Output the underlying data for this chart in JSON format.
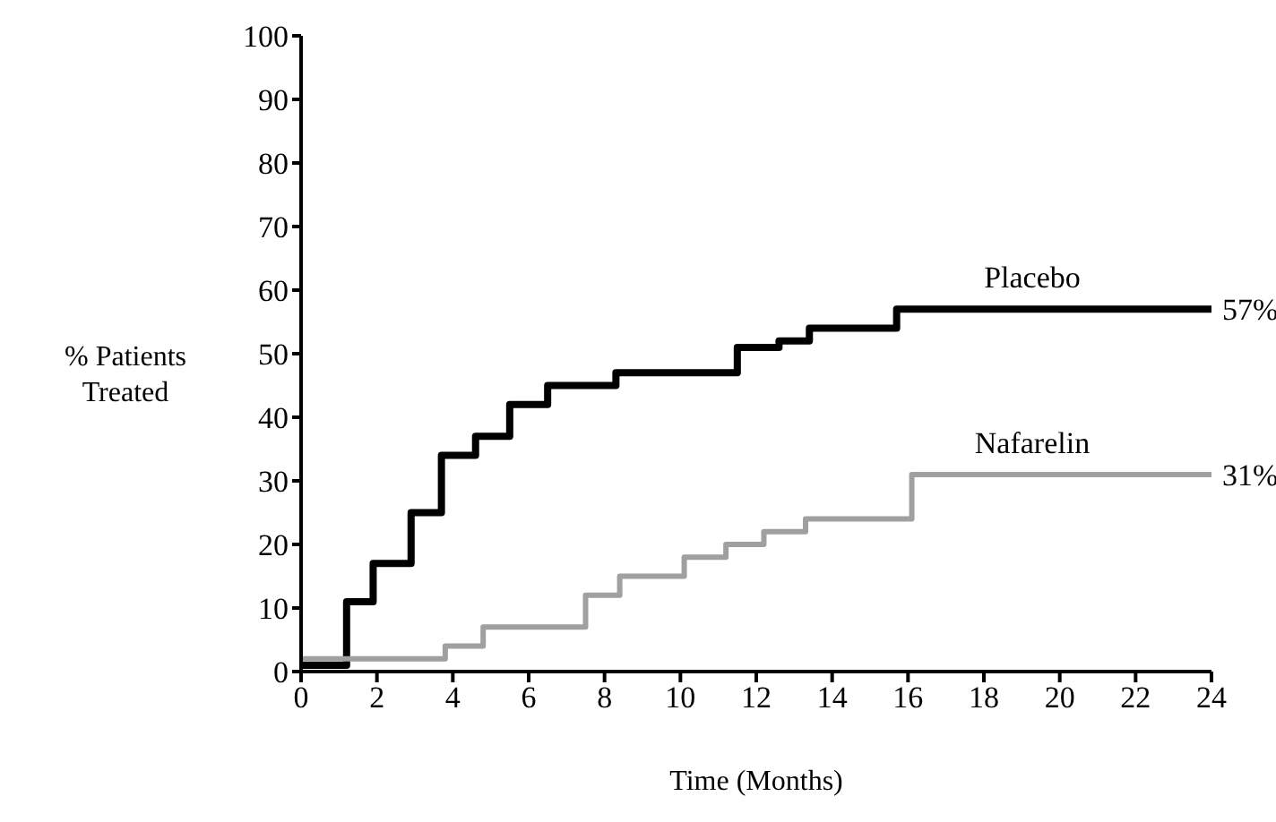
{
  "chart_data": {
    "type": "step",
    "xlabel": "Time (Months)",
    "ylabel": "% Patients Treated",
    "xlim": [
      0,
      24
    ],
    "xticks": [
      0,
      2,
      4,
      6,
      8,
      10,
      12,
      14,
      16,
      18,
      20,
      22,
      24
    ],
    "ylim": [
      0,
      100
    ],
    "yticks": [
      0,
      10,
      20,
      30,
      40,
      50,
      60,
      70,
      80,
      90,
      100
    ],
    "grid": false,
    "legend": false,
    "marker": "none",
    "line_style": "solid",
    "series": [
      {
        "name": "Placebo",
        "color": "#000000",
        "x": [
          0,
          1.2,
          1.9,
          2.9,
          3.7,
          4.6,
          5.5,
          6.5,
          8.3,
          11.5,
          12.6,
          13.4,
          15.7,
          24
        ],
        "values": [
          1,
          11,
          17,
          25,
          34,
          37,
          42,
          45,
          47,
          51,
          52,
          54,
          57,
          57
        ]
      },
      {
        "name": "Nafarelin",
        "color": "#a0a0a0",
        "x": [
          0,
          3.8,
          4.8,
          7.5,
          8.4,
          10.1,
          11.2,
          12.2,
          13.3,
          16.1,
          24
        ],
        "values": [
          2,
          4,
          7,
          12,
          15,
          18,
          20,
          22,
          24,
          31,
          31
        ]
      }
    ],
    "annotations": [
      {
        "text": "57%",
        "x": 24,
        "y": 57
      },
      {
        "text": "31%",
        "x": 24,
        "y": 31
      }
    ]
  }
}
